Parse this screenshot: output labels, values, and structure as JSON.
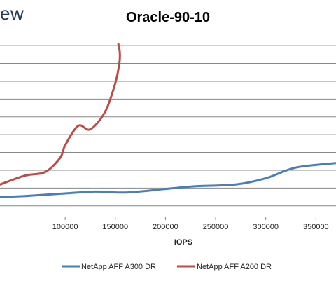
{
  "brand_text": "ew",
  "chart_data": {
    "type": "line",
    "title": "Oracle-90-10",
    "xlabel": "IOPS",
    "ylabel": "",
    "xlim": [
      35000,
      370000
    ],
    "ylim": [
      0,
      10
    ],
    "x_ticks": [
      100000,
      150000,
      200000,
      250000,
      300000,
      350000
    ],
    "x_tick_labels": [
      "100000",
      "150000",
      "200000",
      "250000",
      "300000",
      "350000"
    ],
    "y_gridlines": [
      0.6,
      1.6,
      2.6,
      3.6,
      4.6,
      5.6,
      6.6,
      7.6,
      8.6,
      9.6
    ],
    "grid": true,
    "legend_position": "bottom",
    "series": [
      {
        "name": "NetApp AFF A300 DR",
        "color": "#4a7ebb",
        "x": [
          35000,
          60000,
          100000,
          130000,
          160000,
          200000,
          230000,
          270000,
          300000,
          330000,
          370000
        ],
        "y": [
          1.1,
          1.15,
          1.3,
          1.4,
          1.35,
          1.55,
          1.7,
          1.8,
          2.15,
          2.75,
          3.0
        ]
      },
      {
        "name": "NetApp AFF A200 DR",
        "color": "#be4b48",
        "x": [
          35000,
          60000,
          80000,
          95000,
          100000,
          113000,
          125000,
          140000,
          150000,
          154000,
          154500,
          153000
        ],
        "y": [
          1.8,
          2.3,
          2.5,
          3.3,
          4.0,
          5.1,
          4.9,
          5.9,
          7.5,
          8.6,
          9.2,
          9.7
        ]
      }
    ]
  }
}
